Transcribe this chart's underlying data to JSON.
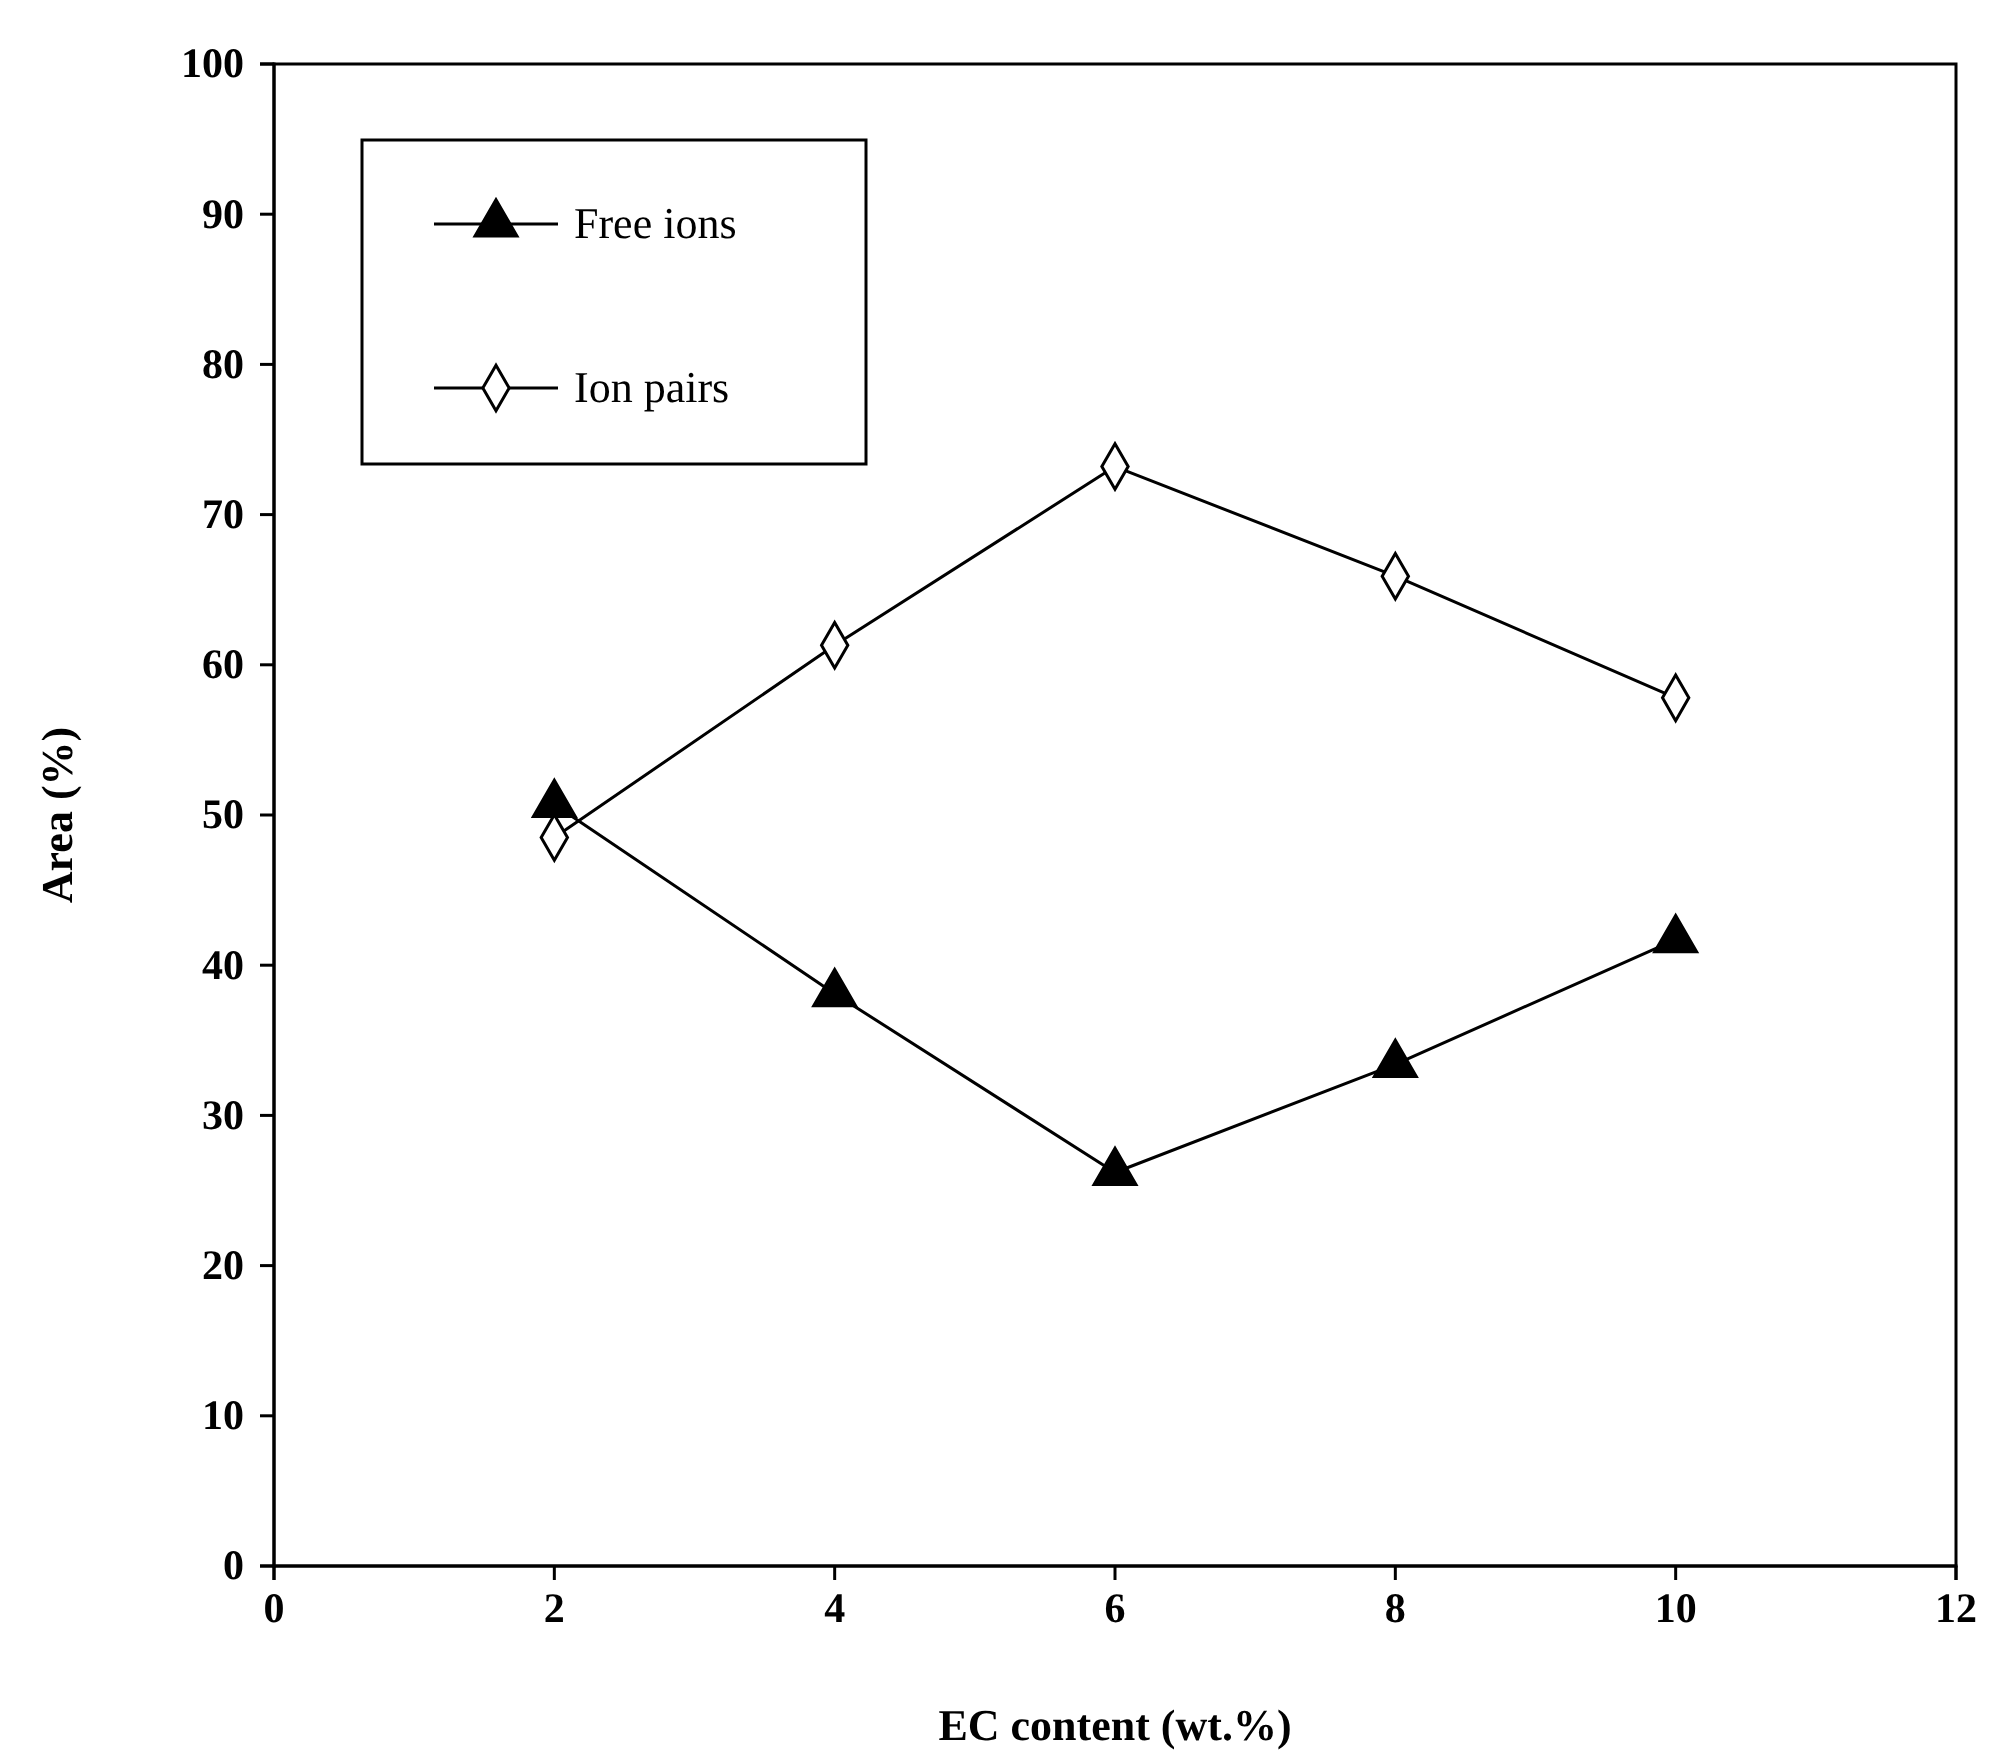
{
  "chart_data": {
    "type": "line",
    "xlabel": "EC content (wt.%)",
    "ylabel": "Area (%)",
    "x": [
      2,
      4,
      6,
      8,
      10
    ],
    "series": [
      {
        "name": "Free ions",
        "color": "#000000",
        "values": [
          50.7,
          38.1,
          26.2,
          33.4,
          41.7
        ],
        "marker": "triangle"
      },
      {
        "name": "Ion pairs",
        "color": "#000000",
        "values": [
          48.5,
          61.3,
          73.2,
          65.9,
          57.8
        ],
        "marker": "diamond"
      }
    ],
    "xlim": [
      0,
      12
    ],
    "xticks": [
      0,
      2,
      4,
      6,
      8,
      10,
      12
    ],
    "ylim": [
      0,
      100
    ],
    "yticks": [
      0,
      10,
      20,
      30,
      40,
      50,
      60,
      70,
      80,
      90,
      100
    ],
    "grid": false,
    "legend": "top left",
    "line_style": "solid"
  }
}
